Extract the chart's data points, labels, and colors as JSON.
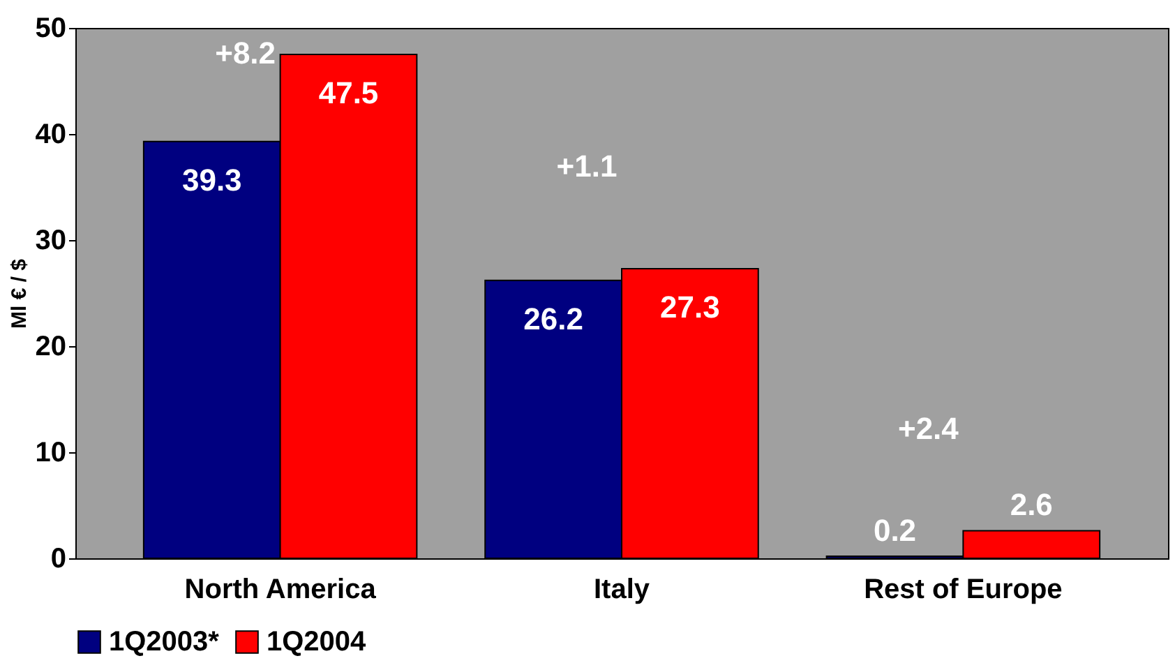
{
  "chart_data": {
    "type": "bar",
    "ylabel": "Ml € / $",
    "categories": [
      "North America",
      "Italy",
      "Rest of Europe"
    ],
    "series": [
      {
        "name": "1Q2003*",
        "color": "#000080",
        "values": [
          39.3,
          26.2,
          0.2
        ]
      },
      {
        "name": "1Q2004",
        "color": "#ff0000",
        "values": [
          47.5,
          27.3,
          2.6
        ]
      }
    ],
    "ylim": [
      0,
      50
    ],
    "yticks": [
      0,
      10,
      20,
      30,
      40,
      50
    ],
    "grid": false,
    "legend": "bottom",
    "data_labels": true,
    "annotations": [
      "+8.2",
      "+1.1",
      "+2.4"
    ]
  }
}
